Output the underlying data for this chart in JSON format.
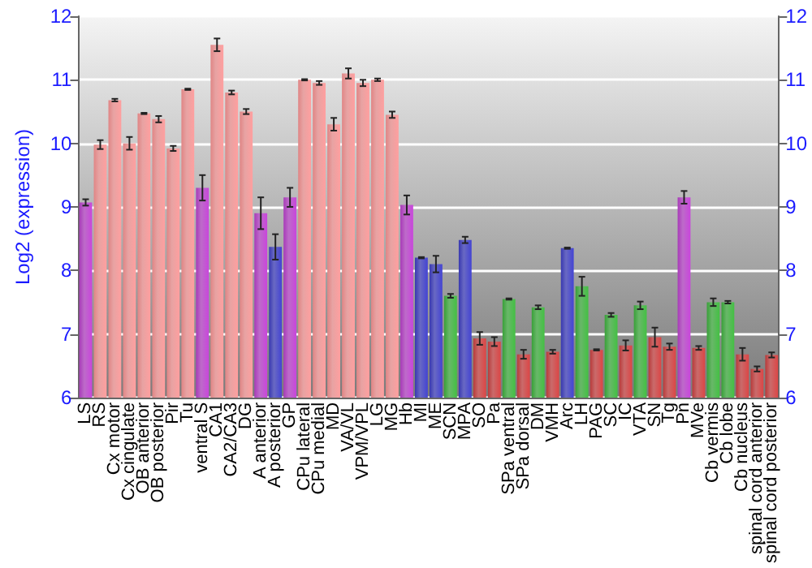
{
  "chart_data": {
    "type": "bar",
    "ylabel": "Log2 (expression)",
    "categories": [
      "LS",
      "RS",
      "Cx motor",
      "Cx cingulate",
      "OB anterior",
      "OB posterior",
      "Pir",
      "Tu",
      "ventral S",
      "CA1",
      "CA2/CA3",
      "DG",
      "A anterior",
      "A posterior",
      "GP",
      "CPu lateral",
      "CPu medial",
      "MD",
      "VA/VL",
      "VPM/VPL",
      "LG",
      "MG",
      "Hb",
      "MI",
      "ME",
      "SCN",
      "MPA",
      "SO",
      "Pa",
      "SPa ventral",
      "SPa dorsal",
      "DM",
      "VMH",
      "Arc",
      "LH",
      "PAG",
      "SC",
      "IC",
      "VTA",
      "SN",
      "Tg",
      "Pn",
      "MVe",
      "Cb vermis",
      "Cb lobe",
      "Cb nucleus",
      "spinal cord anterior",
      "spinal cord posterior"
    ],
    "values": [
      9.07,
      9.98,
      10.68,
      10.0,
      10.47,
      10.38,
      9.92,
      10.85,
      9.3,
      11.55,
      10.8,
      10.5,
      8.9,
      8.37,
      9.15,
      11.0,
      10.95,
      10.3,
      11.1,
      10.95,
      11.0,
      10.45,
      9.03,
      8.2,
      8.1,
      7.6,
      8.48,
      6.93,
      6.88,
      7.55,
      6.68,
      7.42,
      6.72,
      8.35,
      7.75,
      6.75,
      7.3,
      6.82,
      7.45,
      6.95,
      6.8,
      9.15,
      6.78,
      7.5,
      7.5,
      6.68,
      6.45,
      6.67
    ],
    "errors": [
      0.05,
      0.07,
      0.02,
      0.1,
      0.01,
      0.05,
      0.04,
      0.01,
      0.2,
      0.1,
      0.03,
      0.04,
      0.25,
      0.2,
      0.15,
      0.01,
      0.03,
      0.1,
      0.08,
      0.05,
      0.02,
      0.05,
      0.15,
      0.01,
      0.13,
      0.03,
      0.05,
      0.1,
      0.07,
      0.01,
      0.07,
      0.03,
      0.03,
      0.01,
      0.15,
      0.01,
      0.03,
      0.08,
      0.06,
      0.15,
      0.05,
      0.1,
      0.03,
      0.06,
      0.02,
      0.1,
      0.04,
      0.04
    ],
    "colors": [
      "#a83ab8",
      "#e08585",
      "#e08585",
      "#e08585",
      "#e08585",
      "#e08585",
      "#e08585",
      "#e08585",
      "#a83ab8",
      "#e08585",
      "#e08585",
      "#e08585",
      "#a83ab8",
      "#3838b0",
      "#a83ab8",
      "#e08585",
      "#e08585",
      "#e08585",
      "#e08585",
      "#e08585",
      "#e08585",
      "#e08585",
      "#a83ab8",
      "#3838b0",
      "#3838b0",
      "#38a038",
      "#3838b0",
      "#b83a3a",
      "#b83a3a",
      "#38a038",
      "#b83a3a",
      "#38a038",
      "#b83a3a",
      "#3838b0",
      "#38a038",
      "#b83a3a",
      "#38a038",
      "#b83a3a",
      "#38a038",
      "#b83a3a",
      "#b83a3a",
      "#a83ab8",
      "#b83a3a",
      "#38a038",
      "#38a038",
      "#b83a3a",
      "#b83a3a",
      "#b83a3a"
    ],
    "ylim": [
      6,
      12
    ],
    "yticks": [
      6,
      7,
      8,
      9,
      10,
      11,
      12
    ],
    "y2lim": [
      6,
      12
    ],
    "y2ticks": [
      6,
      7,
      8,
      9,
      10,
      11,
      12
    ],
    "grid": "y"
  }
}
